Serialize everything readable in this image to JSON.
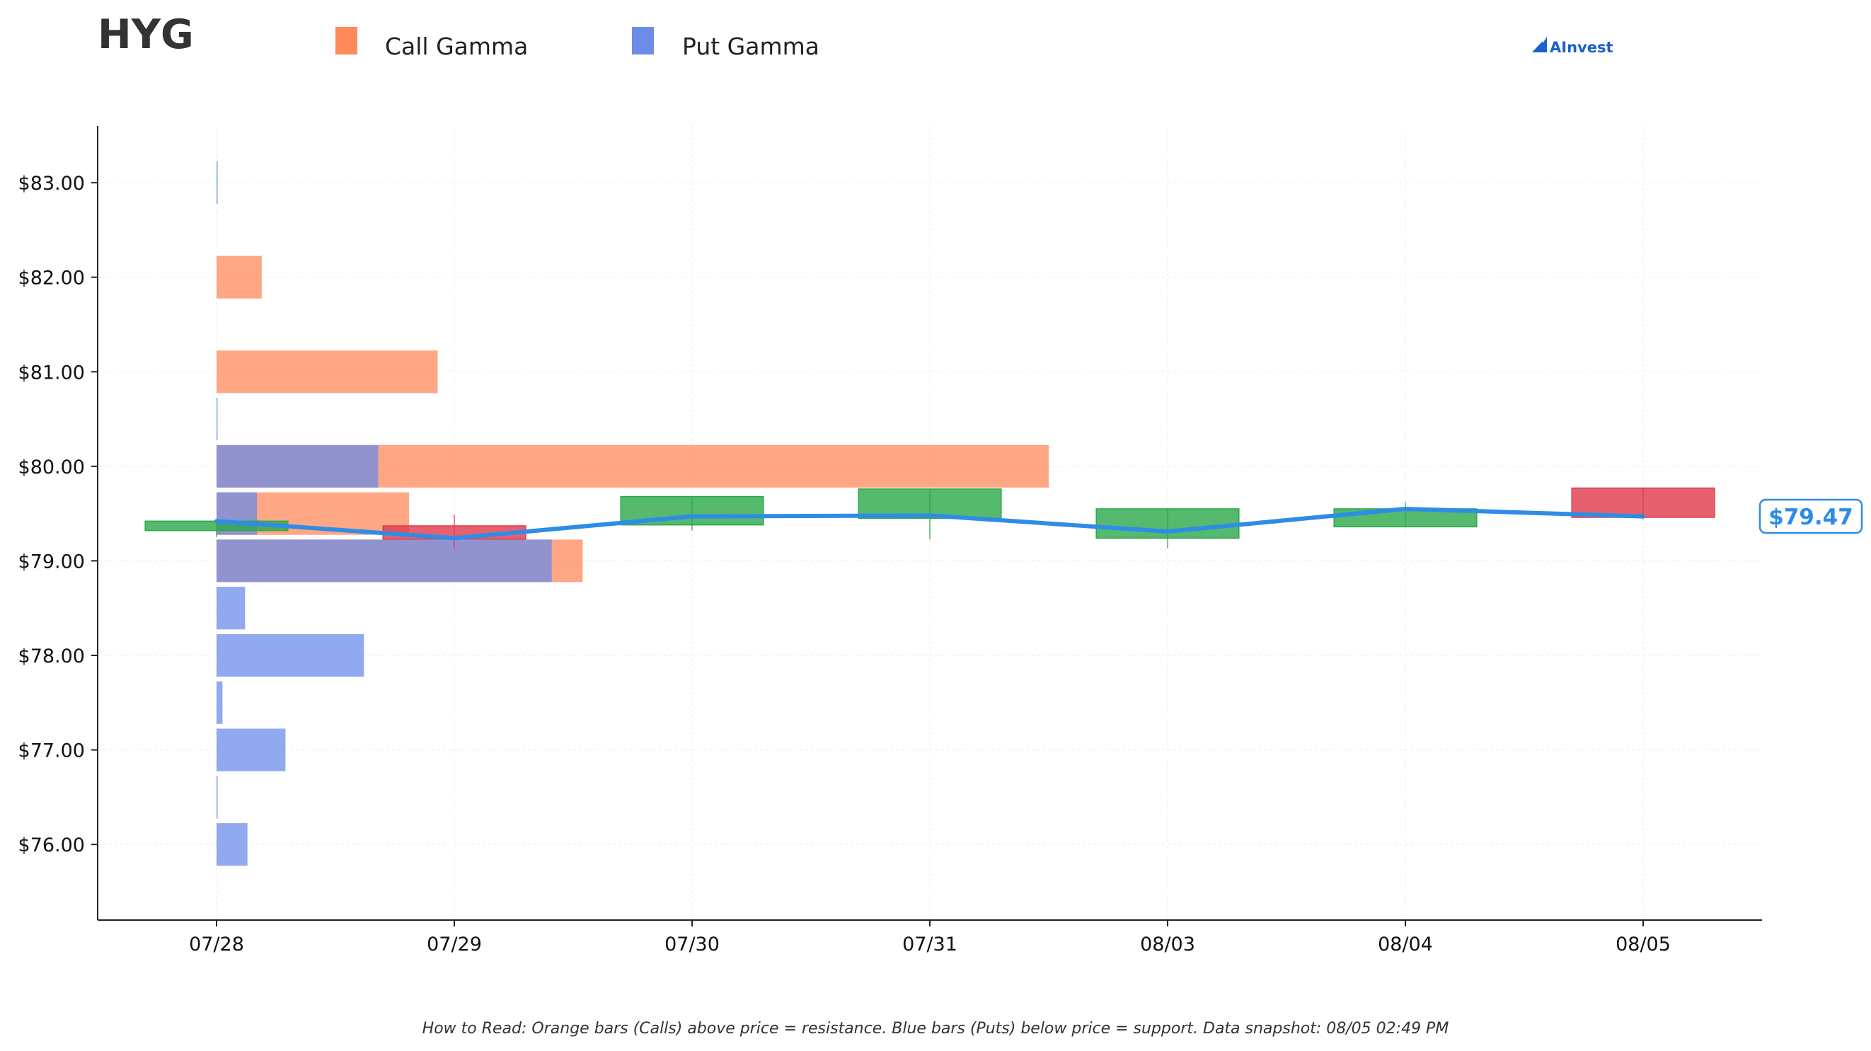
{
  "chart_data": {
    "type": "candlestick_with_gamma_bars",
    "title": "HYG",
    "legend": [
      {
        "name": "Call Gamma",
        "color": "#ff8a5c"
      },
      {
        "name": "Put Gamma",
        "color": "#6c8ce8"
      }
    ],
    "legend_placement": "top",
    "brand": "AInvest",
    "categories": [
      "07/28",
      "07/29",
      "07/30",
      "07/31",
      "08/03",
      "08/04",
      "08/05"
    ],
    "y_ticks": [
      "$76.00",
      "$77.00",
      "$78.00",
      "$79.00",
      "$80.00",
      "$81.00",
      "$82.00",
      "$83.00"
    ],
    "y_tick_values": [
      76,
      77,
      78,
      79,
      80,
      81,
      82,
      83
    ],
    "ylim": [
      75.2,
      83.6
    ],
    "xlim": [
      -0.5,
      6.5
    ],
    "grid": true,
    "candles": [
      {
        "date": "07/28",
        "open": 79.32,
        "close": 79.42,
        "high": 79.42,
        "low": 79.25
      },
      {
        "date": "07/29",
        "open": 79.37,
        "close": 79.23,
        "high": 79.49,
        "low": 79.13
      },
      {
        "date": "07/30",
        "open": 79.38,
        "close": 79.68,
        "high": 79.68,
        "low": 79.32
      },
      {
        "date": "07/31",
        "open": 79.45,
        "close": 79.76,
        "high": 79.76,
        "low": 79.23
      },
      {
        "date": "08/03",
        "open": 79.24,
        "close": 79.55,
        "high": 79.55,
        "low": 79.13
      },
      {
        "date": "08/04",
        "open": 79.36,
        "close": 79.55,
        "high": 79.62,
        "low": 79.36
      },
      {
        "date": "08/05",
        "open": 79.77,
        "close": 79.46,
        "high": 79.77,
        "low": 79.44
      }
    ],
    "price_line": [
      79.42,
      79.24,
      79.47,
      79.48,
      79.31,
      79.55,
      79.47
    ],
    "last_price": "$79.47",
    "gamma_strikes": [
      76,
      76.5,
      77,
      77.5,
      78,
      78.5,
      79,
      79.5,
      80,
      80.5,
      81,
      82,
      83
    ],
    "call_gamma": [
      0,
      0,
      0,
      0,
      0,
      0,
      1.54,
      0.81,
      3.5,
      0,
      0.93,
      0.19,
      0
    ],
    "put_gamma": [
      0.13,
      0.005,
      0.29,
      0.025,
      0.62,
      0.12,
      1.41,
      0.17,
      0.68,
      0.004,
      0,
      0,
      0.005
    ],
    "footnote": "How to Read: Orange bars (Calls) above price = resistance. Blue bars (Puts) below price = support. Data snapshot: 08/05 02:49 PM"
  }
}
